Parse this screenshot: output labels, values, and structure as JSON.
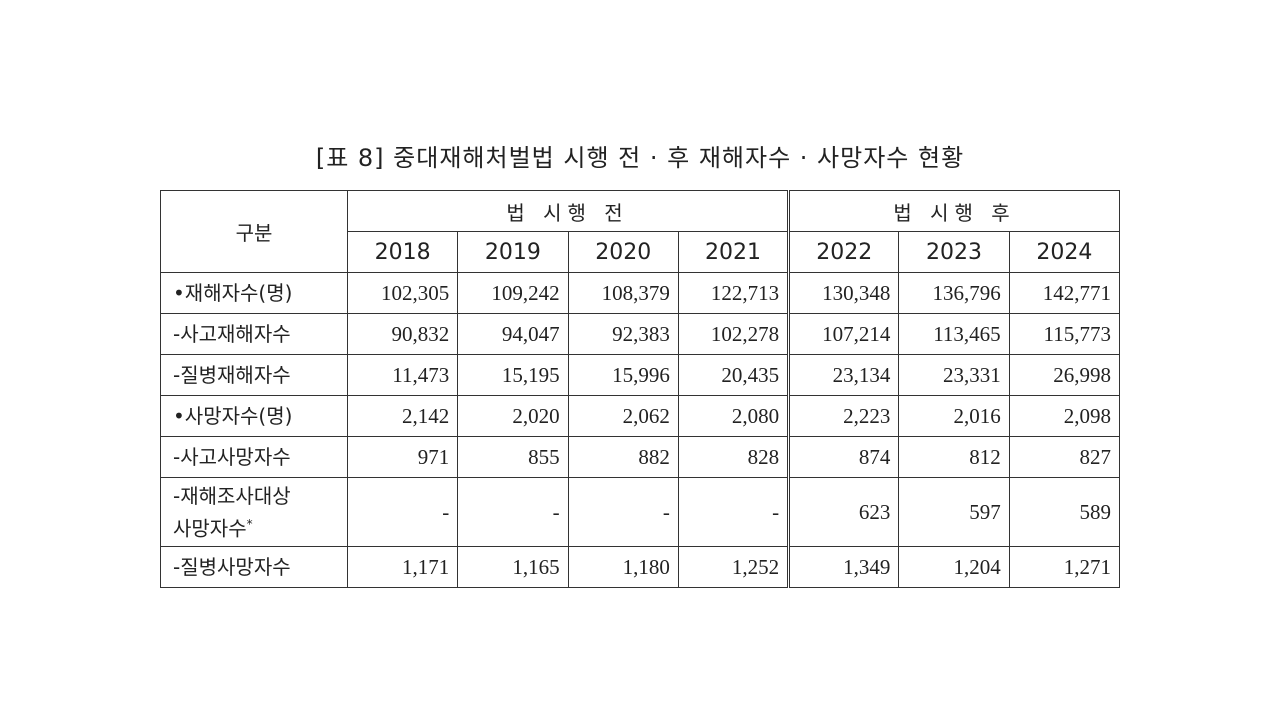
{
  "title": "[표 8] 중대재해처벌법 시행 전 · 후 재해자수 · 사망자수 현황",
  "header": {
    "corner": "구분",
    "groups": [
      "법 시행 전",
      "법 시행 후"
    ],
    "years": [
      "2018",
      "2019",
      "2020",
      "2021",
      "2022",
      "2023",
      "2024"
    ]
  },
  "rows": [
    {
      "label": "•재해자수(명)",
      "values": [
        "102,305",
        "109,242",
        "108,379",
        "122,713",
        "130,348",
        "136,796",
        "142,771"
      ]
    },
    {
      "label": "-사고재해자수",
      "values": [
        "90,832",
        "94,047",
        "92,383",
        "102,278",
        "107,214",
        "113,465",
        "115,773"
      ]
    },
    {
      "label": "-질병재해자수",
      "values": [
        "11,473",
        "15,195",
        "15,996",
        "20,435",
        "23,134",
        "23,331",
        "26,998"
      ]
    },
    {
      "label": "•사망자수(명)",
      "values": [
        "2,142",
        "2,020",
        "2,062",
        "2,080",
        "2,223",
        "2,016",
        "2,098"
      ]
    },
    {
      "label": "-사고사망자수",
      "values": [
        "971",
        "855",
        "882",
        "828",
        "874",
        "812",
        "827"
      ]
    },
    {
      "label": "-재해조사대상\n사망자수",
      "note": "*",
      "values": [
        "-",
        "-",
        "-",
        "-",
        "623",
        "597",
        "589"
      ]
    },
    {
      "label": "-질병사망자수",
      "values": [
        "1,171",
        "1,165",
        "1,180",
        "1,252",
        "1,349",
        "1,204",
        "1,271"
      ]
    }
  ]
}
